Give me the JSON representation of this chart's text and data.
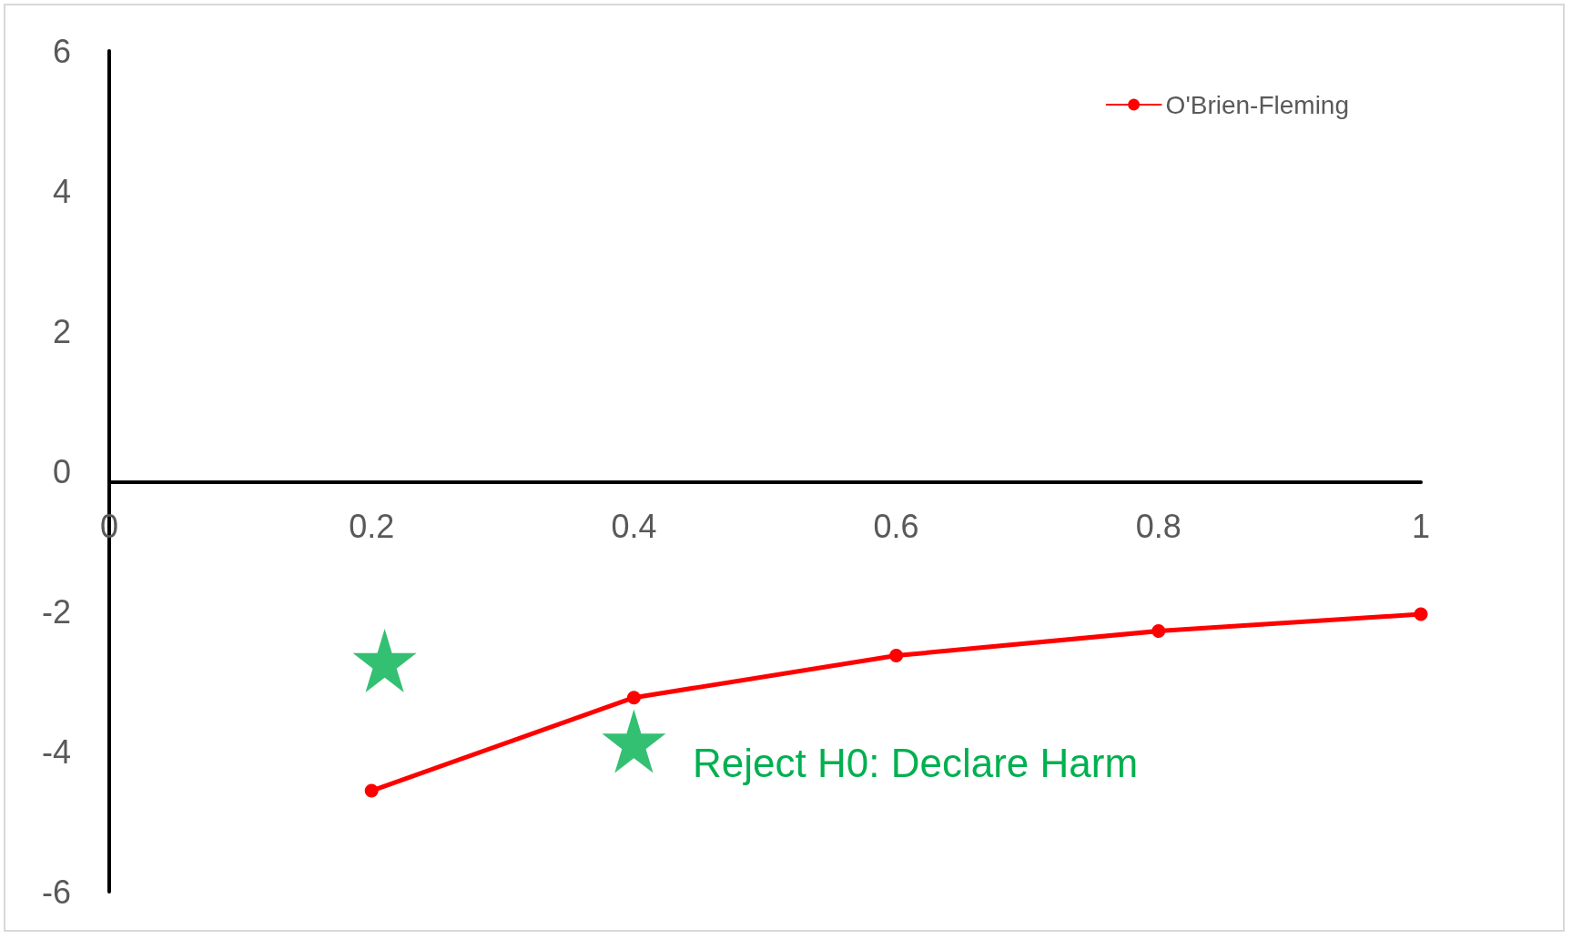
{
  "chart_data": {
    "type": "line",
    "x": [
      0.2,
      0.4,
      0.6,
      0.8,
      1
    ],
    "series": [
      {
        "name": "O'Brien-Fleming",
        "color": "#ff0000",
        "values": [
          -4.56,
          -3.23,
          -2.63,
          -2.28,
          -2.04
        ],
        "marker": "circle"
      },
      {
        "type": "scatter",
        "color": "#00b050",
        "x": [
          0.21,
          0.4
        ],
        "values": [
          -2.7,
          -3.85
        ],
        "marker": "star"
      }
    ],
    "xlim": [
      0,
      1
    ],
    "xticks": [
      0,
      0.2,
      0.4,
      0.6,
      0.8,
      1
    ],
    "ylim": [
      -6,
      6
    ],
    "yticks": [
      -6,
      -4,
      -2,
      0,
      2,
      4,
      6
    ],
    "annotations": [
      "Reject H0: Declare Harm"
    ],
    "grid": false,
    "legend": "top right",
    "line_style": "solid"
  }
}
